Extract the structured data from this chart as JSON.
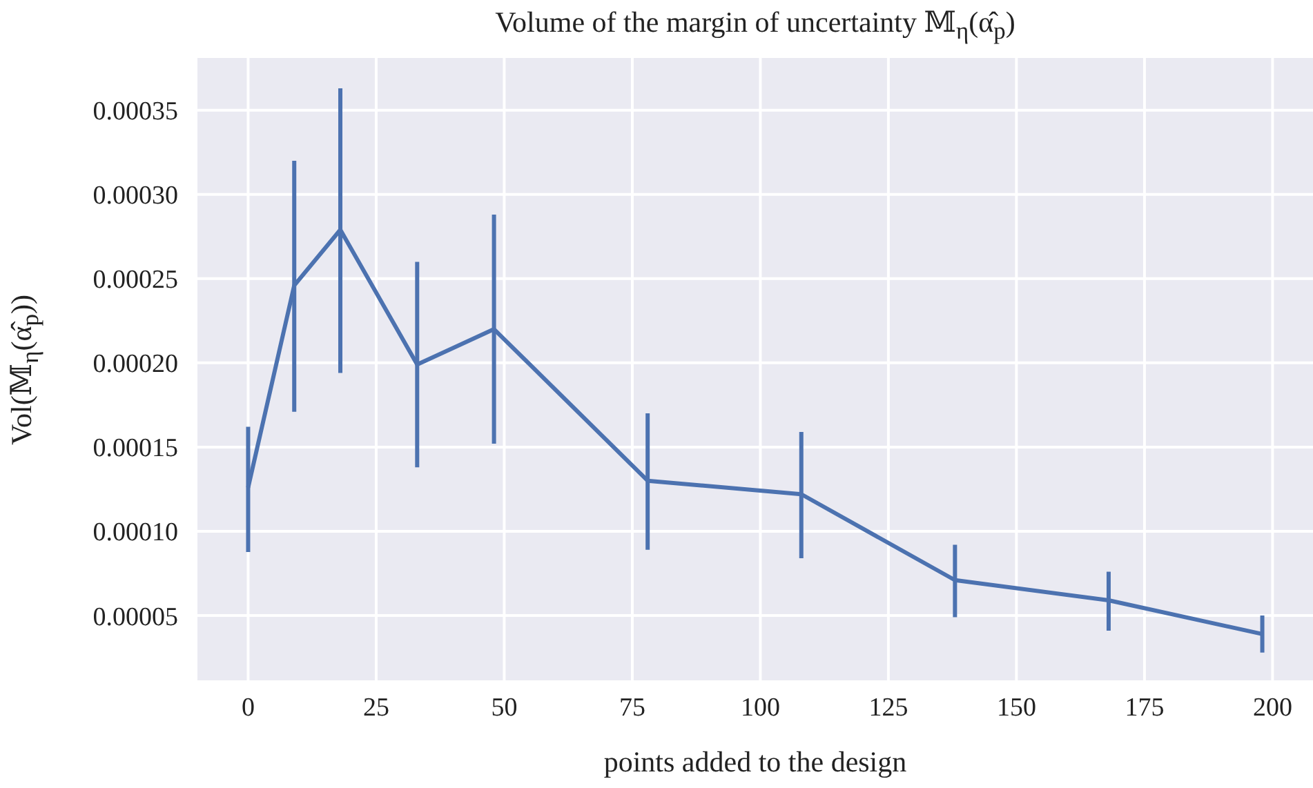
{
  "chart_data": {
    "type": "line",
    "title": "Volume of the margin of uncertainty 𝕄$_{η}$(α̂$_{p}$)",
    "xlabel": "points added to the design",
    "ylabel": "Vol(𝕄$_{η}$(α̂$_{p}$))",
    "x": [
      0,
      9,
      18,
      33,
      48,
      78,
      108,
      138,
      168,
      198
    ],
    "series": [
      {
        "color": "#4c72b0",
        "values": [
          0.000126,
          0.000246,
          0.000279,
          0.000199,
          0.00022,
          0.00013,
          0.000122,
          7.1e-05,
          5.9e-05,
          3.9e-05
        ],
        "errors": [
          [
            8.77e-05,
            0.000162
          ],
          [
            0.000171,
            0.00032
          ],
          [
            0.000194,
            0.000363
          ],
          [
            0.000138,
            0.00026
          ],
          [
            0.000152,
            0.000288
          ],
          [
            8.9e-05,
            0.00017
          ],
          [
            8.4e-05,
            0.000159
          ],
          [
            4.9e-05,
            9.2e-05
          ],
          [
            4.1e-05,
            7.6e-05
          ],
          [
            2.8e-05,
            5e-05
          ]
        ]
      }
    ],
    "xlim": [
      -9.9,
      207.9
    ],
    "xticks": [
      0,
      25,
      50,
      75,
      100,
      125,
      150,
      175,
      200
    ],
    "ylim": [
      1.15e-05,
      0.000381
    ],
    "yticks": [
      {
        "value": 5e-05,
        "label": "0.00005"
      },
      {
        "value": 0.0001,
        "label": "0.00010"
      },
      {
        "value": 0.00015,
        "label": "0.00015"
      },
      {
        "value": 0.0002,
        "label": "0.00020"
      },
      {
        "value": 0.00025,
        "label": "0.00025"
      },
      {
        "value": 0.0003,
        "label": "0.00030"
      },
      {
        "value": 0.00035,
        "label": "0.00035"
      }
    ],
    "grid": true,
    "marker": "none",
    "line_style": "solid",
    "legend": false
  }
}
